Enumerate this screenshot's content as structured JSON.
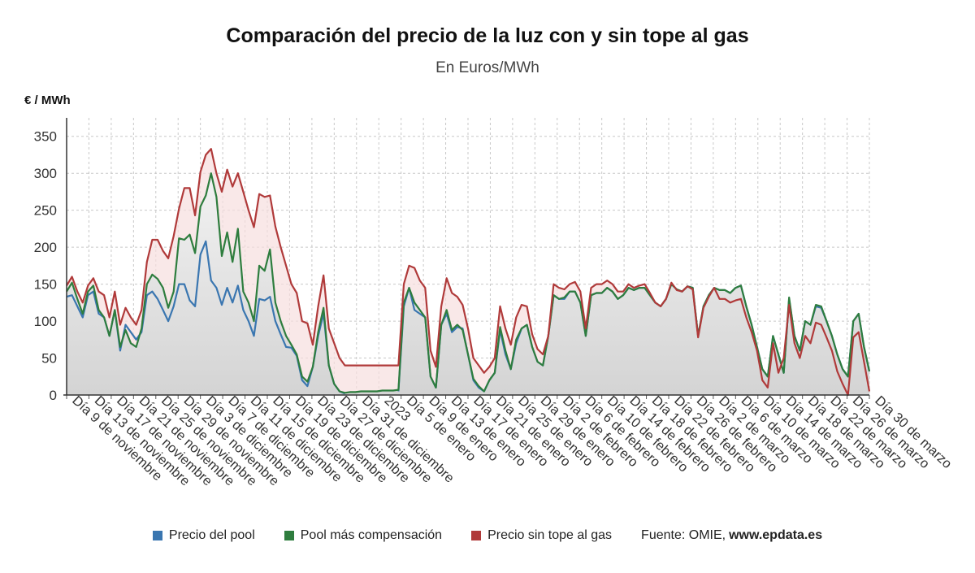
{
  "chart_data": {
    "type": "line",
    "title": "Comparación del precio de la luz con y sin tope al gas",
    "subtitle": "En Euros/MWh",
    "ylabel": "€ / MWh",
    "xlabel": "",
    "ylim": [
      0,
      375
    ],
    "yticks": [
      0,
      50,
      100,
      150,
      200,
      250,
      300,
      350
    ],
    "grid": true,
    "legend_position": "bottom",
    "x_tick_labels": [
      "Día 9 de noviembre",
      "Día 13 de noviembre",
      "Día 17 de noviembre",
      "Día 21 de noviembre",
      "Día 25 de noviembre",
      "Día 29 de noviembre",
      "Día 3 de diciembre",
      "Día 7 de diciembre",
      "Día 11 de diciembre",
      "Día 15 de diciembre",
      "Día 19 de diciembre",
      "Día 23 de diciembre",
      "Día 27 de diciembre",
      "Día 31 de diciembre",
      "2023",
      "Día 5 de enero",
      "Día 9 de enero",
      "Día 13 de enero",
      "Día 17 de enero",
      "Día 21 de enero",
      "Día 25 de enero",
      "Día 29 de enero",
      "Día 2 de febrero",
      "Día 6 de febrero",
      "Día 10 de febrero",
      "Día 14 de febrero",
      "Día 18 de febrero",
      "Día 22 de febrero",
      "Día 26 de febrero",
      "Día 2 de marzo",
      "Día 6 de marzo",
      "Día 10 de marzo",
      "Día 14 de marzo",
      "Día 18 de marzo",
      "Día 22 de marzo",
      "Día 26 de marzo",
      "Día 30 de marzo"
    ],
    "series": [
      {
        "name": "Precio del pool",
        "color": "#3a76b0",
        "values": [
          133,
          135,
          120,
          105,
          135,
          140,
          110,
          105,
          80,
          115,
          60,
          95,
          85,
          75,
          85,
          135,
          140,
          130,
          115,
          100,
          120,
          150,
          150,
          128,
          120,
          190,
          208,
          155,
          145,
          122,
          145,
          125,
          148,
          115,
          100,
          80,
          130,
          128,
          133,
          100,
          82,
          65,
          64,
          53,
          20,
          12,
          38,
          80,
          110,
          40,
          15,
          5,
          2,
          null,
          null,
          null,
          null,
          null,
          null,
          null,
          null,
          null,
          5,
          120,
          145,
          115,
          110,
          105,
          25,
          10,
          95,
          110,
          85,
          92,
          90,
          55,
          20,
          10,
          5,
          20,
          30,
          88,
          55,
          35,
          70,
          90,
          95,
          65,
          45,
          40,
          80,
          135,
          130,
          130,
          140,
          140,
          125,
          80,
          135,
          138,
          138,
          145,
          140,
          130,
          135,
          145,
          142,
          145,
          145,
          135,
          125,
          120,
          130,
          150,
          143,
          140,
          147,
          145,
          80,
          120,
          135,
          145,
          142,
          142,
          138,
          145,
          148,
          120,
          95,
          65,
          35,
          25,
          80,
          55,
          30,
          130,
          80,
          60,
          100,
          95,
          120,
          118,
          100,
          80,
          55,
          35,
          25,
          100,
          110,
          65,
          32
        ]
      },
      {
        "name": "Pool más compensación",
        "color": "#2e7d3e",
        "values": [
          140,
          152,
          130,
          110,
          140,
          148,
          115,
          105,
          80,
          115,
          65,
          88,
          70,
          65,
          90,
          150,
          163,
          157,
          145,
          118,
          140,
          212,
          210,
          217,
          192,
          255,
          270,
          300,
          268,
          188,
          220,
          180,
          225,
          140,
          125,
          100,
          175,
          168,
          197,
          125,
          100,
          80,
          68,
          55,
          25,
          18,
          38,
          85,
          118,
          40,
          15,
          5,
          3,
          4,
          4,
          5,
          5,
          5,
          5,
          6,
          6,
          6,
          7,
          125,
          145,
          125,
          115,
          105,
          25,
          10,
          95,
          115,
          88,
          95,
          88,
          55,
          22,
          12,
          5,
          20,
          30,
          92,
          60,
          35,
          75,
          90,
          95,
          65,
          45,
          40,
          80,
          135,
          130,
          132,
          140,
          140,
          125,
          80,
          135,
          138,
          138,
          145,
          140,
          130,
          135,
          145,
          142,
          145,
          145,
          135,
          125,
          120,
          130,
          150,
          143,
          140,
          147,
          145,
          80,
          120,
          135,
          145,
          142,
          142,
          138,
          145,
          148,
          120,
          95,
          65,
          35,
          25,
          80,
          55,
          30,
          132,
          80,
          60,
          100,
          95,
          122,
          120,
          100,
          80,
          55,
          35,
          25,
          100,
          110,
          65,
          32
        ]
      },
      {
        "name": "Precio sin tope al gas",
        "color": "#b03a3a",
        "values": [
          148,
          160,
          140,
          125,
          148,
          158,
          140,
          135,
          105,
          140,
          95,
          118,
          105,
          95,
          115,
          180,
          210,
          210,
          195,
          185,
          215,
          252,
          280,
          280,
          243,
          302,
          325,
          333,
          300,
          275,
          305,
          282,
          300,
          275,
          250,
          227,
          272,
          268,
          270,
          228,
          200,
          175,
          150,
          138,
          100,
          97,
          68,
          120,
          162,
          90,
          70,
          50,
          40,
          40,
          40,
          40,
          40,
          40,
          40,
          40,
          40,
          40,
          40,
          150,
          175,
          172,
          155,
          145,
          60,
          38,
          120,
          158,
          138,
          133,
          122,
          90,
          50,
          40,
          30,
          38,
          50,
          120,
          90,
          68,
          105,
          122,
          120,
          82,
          62,
          55,
          80,
          150,
          145,
          143,
          150,
          153,
          140,
          90,
          145,
          150,
          150,
          155,
          150,
          140,
          140,
          150,
          145,
          148,
          150,
          138,
          125,
          120,
          130,
          152,
          142,
          140,
          147,
          143,
          78,
          118,
          133,
          145,
          130,
          130,
          125,
          128,
          130,
          105,
          85,
          60,
          20,
          10,
          70,
          30,
          50,
          122,
          70,
          50,
          80,
          70,
          98,
          95,
          78,
          60,
          32,
          15,
          0,
          78,
          85,
          45,
          5
        ]
      }
    ]
  },
  "legend": {
    "items": [
      {
        "label": "Precio del pool",
        "color": "#3a76b0"
      },
      {
        "label": "Pool más compensación",
        "color": "#2e7d3e"
      },
      {
        "label": "Precio sin tope al gas",
        "color": "#b03a3a"
      }
    ],
    "source_prefix": "Fuente: OMIE,",
    "source_site": "www.epdata.es"
  }
}
